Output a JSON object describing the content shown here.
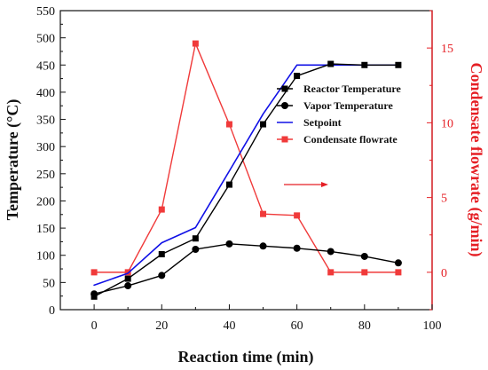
{
  "chart_data": {
    "type": "line",
    "x": [
      0,
      10,
      20,
      30,
      40,
      50,
      60,
      70,
      80,
      90
    ],
    "xlabel": "Reaction time (min)",
    "ylabel_left": "Temperature (°C)",
    "ylabel_right": "Condensate flowrate (g/min)",
    "xlim": [
      -10,
      100
    ],
    "ylim_left": [
      0,
      550
    ],
    "ylim_right": [
      -2.5,
      17.5
    ],
    "x_ticks": [
      0,
      20,
      40,
      60,
      80,
      100
    ],
    "y_ticks_left": [
      0,
      50,
      100,
      150,
      200,
      250,
      300,
      350,
      400,
      450,
      500,
      550
    ],
    "y_ticks_right": [
      0,
      5,
      10,
      15
    ],
    "grid": false,
    "legend_position": "right-center",
    "annotation": "red arrow pointing right",
    "series": [
      {
        "name": "Reactor Temperature",
        "axis": "left",
        "color": "#000000",
        "marker": "square",
        "values": [
          24,
          57,
          102,
          131,
          230,
          341,
          430,
          452,
          450,
          450
        ]
      },
      {
        "name": "Vapor Temperature",
        "axis": "left",
        "color": "#000000",
        "marker": "circle",
        "values": [
          29,
          44,
          63,
          111,
          121,
          117,
          113,
          107,
          98,
          86
        ]
      },
      {
        "name": "Setpoint",
        "axis": "left",
        "color": "#1010e6",
        "marker": "none",
        "values": [
          45,
          67,
          123,
          151,
          255,
          360,
          450,
          450,
          450,
          450
        ]
      },
      {
        "name": "Condensate flowrate",
        "axis": "right",
        "color": "#f03a3a",
        "marker": "square",
        "values": [
          0,
          0,
          4.2,
          15.3,
          9.9,
          3.9,
          3.8,
          0,
          0,
          0
        ]
      }
    ]
  }
}
